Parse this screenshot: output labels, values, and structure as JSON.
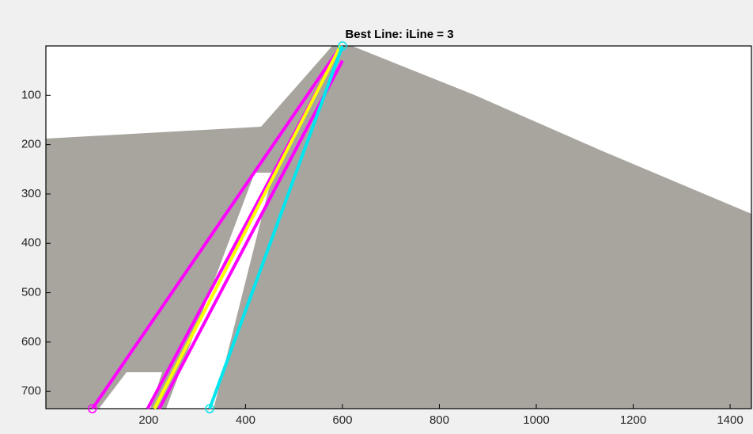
{
  "chart_data": {
    "type": "line",
    "title": "Best Line: iLine = 3",
    "xlim": [
      -12,
      1444
    ],
    "ylim": [
      0,
      735
    ],
    "y_reversed": true,
    "xticks": [
      200,
      400,
      600,
      800,
      1000,
      1200,
      1400
    ],
    "yticks": [
      100,
      200,
      300,
      400,
      500,
      600,
      700
    ],
    "series": [
      {
        "color": "#ff00ff",
        "x": [
          84,
          590
        ],
        "y": [
          735,
          10
        ],
        "markers": [
          0
        ]
      },
      {
        "color": "#ff00ff",
        "x": [
          198,
          586
        ],
        "y": [
          735,
          20
        ],
        "markers": []
      },
      {
        "color": "#ffff00",
        "x": [
          212,
          596
        ],
        "y": [
          735,
          0
        ],
        "markers": []
      },
      {
        "color": "#ff00ff",
        "x": [
          222,
          600
        ],
        "y": [
          735,
          30
        ],
        "markers": []
      },
      {
        "color": "#00e5ee",
        "x": [
          326,
          600
        ],
        "y": [
          735,
          0
        ],
        "markers": [
          0,
          1
        ]
      }
    ]
  }
}
